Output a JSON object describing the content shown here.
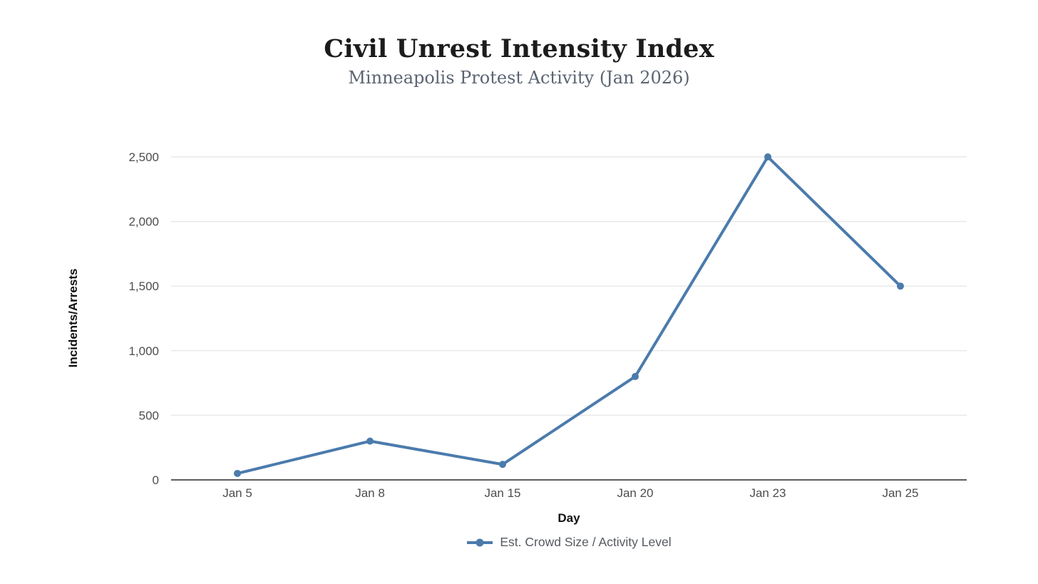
{
  "chart_data": {
    "type": "line",
    "title": "Civil Unrest Intensity Index",
    "subtitle": "Minneapolis Protest Activity (Jan 2026)",
    "xlabel": "Day",
    "ylabel": "Incidents/Arrests",
    "categories": [
      "Jan 5",
      "Jan 8",
      "Jan 15",
      "Jan 20",
      "Jan 23",
      "Jan 25"
    ],
    "series": [
      {
        "name": "Est. Crowd Size / Activity Level",
        "values": [
          50,
          300,
          120,
          800,
          2500,
          1500
        ]
      }
    ],
    "ylim": [
      0,
      2500
    ],
    "yticks": [
      0,
      500,
      1000,
      1500,
      2000,
      2500
    ],
    "ytick_labels": [
      "0",
      "500",
      "1,000",
      "1,500",
      "2,000",
      "2,500"
    ],
    "grid": "horizontal-only",
    "legend_position": "bottom-center",
    "colors": {
      "line": "#4b7bac",
      "point": "#4b7bac",
      "grid": "#e9e9e9",
      "axis": "#262626",
      "tick_text": "#4d4d4d",
      "title_text": "#1c1c1c",
      "subtitle_text": "#5b6472",
      "legend_text": "#555a60"
    }
  }
}
